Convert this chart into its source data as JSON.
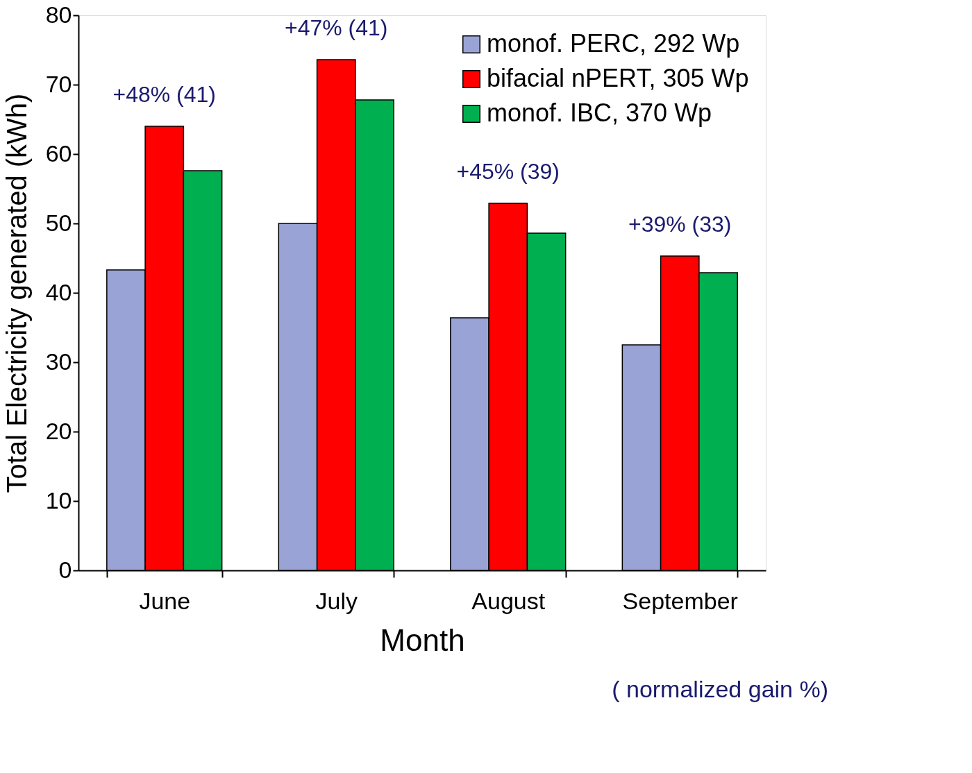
{
  "chart_data": {
    "type": "bar",
    "xlabel": "Month",
    "ylabel": "Total Electricity generated (kWh)",
    "categories": [
      "June",
      "July",
      "August",
      "September"
    ],
    "series": [
      {
        "name": "monof. PERC, 292 Wp",
        "color": "#9aa3d6",
        "values": [
          43.3,
          50.0,
          36.4,
          32.5
        ]
      },
      {
        "name": "bifacial nPERT, 305 Wp",
        "color": "#ff0000",
        "values": [
          64.0,
          73.6,
          52.9,
          45.3
        ]
      },
      {
        "name": "monof. IBC, 370 Wp",
        "color": "#00b050",
        "values": [
          57.6,
          67.8,
          48.6,
          42.9
        ]
      }
    ],
    "ylim": [
      0,
      80
    ],
    "yticks": [
      0,
      10,
      20,
      30,
      40,
      50,
      60,
      70,
      80
    ],
    "legend": "top right",
    "annotations": [
      "+48% (41)",
      "+47% (41)",
      "+45% (39)",
      "+39% (33)",
      "( normalized gain %)"
    ]
  }
}
